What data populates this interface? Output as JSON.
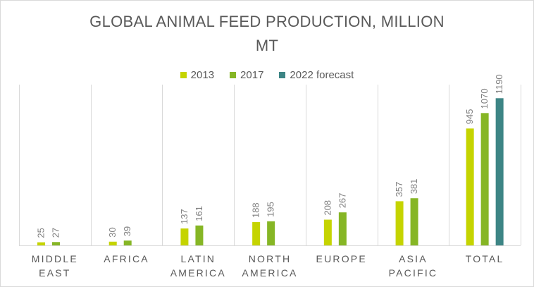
{
  "chart_data": {
    "type": "bar",
    "title": "GLOBAL ANIMAL FEED PRODUCTION, MILLION\nMT",
    "categories": [
      "MIDDLE\nEAST",
      "AFRICA",
      "LATIN\nAMERICA",
      "NORTH\nAMERICA",
      "EUROPE",
      "ASIA\nPACIFIC",
      "TOTAL"
    ],
    "series": [
      {
        "name": "2013",
        "color": "#c5d400",
        "values": [
          25,
          30,
          137,
          188,
          208,
          357,
          945
        ]
      },
      {
        "name": "2017",
        "color": "#86b625",
        "values": [
          27,
          39,
          161,
          195,
          267,
          381,
          1070
        ]
      },
      {
        "name": "2022 forecast",
        "color": "#3d8585",
        "values": [
          null,
          null,
          null,
          null,
          null,
          null,
          1190
        ]
      }
    ],
    "ylim": [
      0,
      1300
    ],
    "legend_position": "top",
    "category_separators": true
  }
}
